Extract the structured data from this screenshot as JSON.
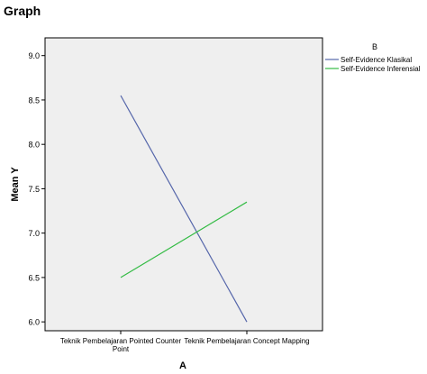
{
  "page": {
    "title": "Graph"
  },
  "colors": {
    "plot_background": "#efefef",
    "axis": "#000000",
    "series_1": "#5566aa",
    "series_2": "#33bb44"
  },
  "chart_data": {
    "type": "line",
    "categories": [
      "Teknik Pembelajaran Pointed Counter Point",
      "Teknik Pembelajaran Concept Mapping"
    ],
    "category_label_lines": [
      [
        "Teknik Pembelajaran Pointed Counter",
        "Point"
      ],
      [
        "Teknik Pembelajaran Concept Mapping"
      ]
    ],
    "series": [
      {
        "name": "Self-Evidence Klasikal",
        "values": [
          8.55,
          6.0
        ],
        "color": "#5566aa"
      },
      {
        "name": "Self-Evidence Inferensial",
        "values": [
          6.5,
          7.35
        ],
        "color": "#33bb44"
      }
    ],
    "title": "",
    "xlabel": "A",
    "ylabel": "Mean Y",
    "ylim": [
      5.9,
      9.2
    ],
    "yticks": [
      "6.0",
      "6.5",
      "7.0",
      "7.5",
      "8.0",
      "8.5",
      "9.0"
    ],
    "grid": false,
    "legend_title": "B",
    "legend_position": "right"
  }
}
